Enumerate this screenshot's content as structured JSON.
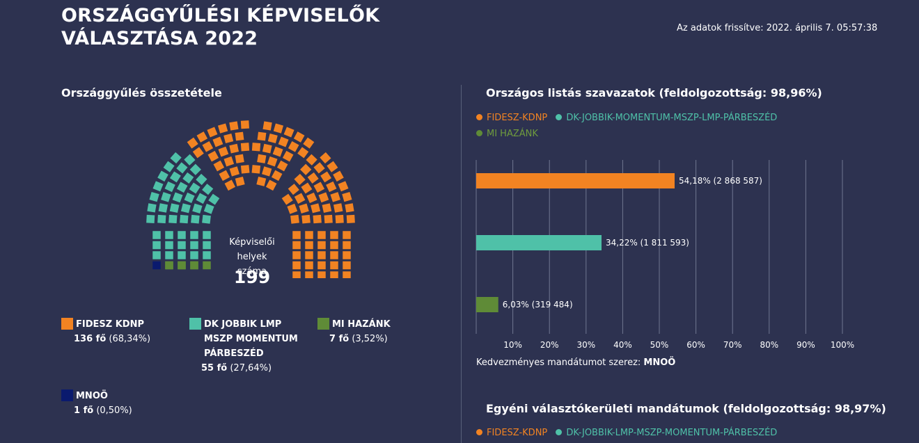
{
  "header": {
    "title_line1": "ORSZÁGGYŰLÉSI KÉPVISELŐK",
    "title_line2": "VÁLASZTÁSA 2022",
    "updated": "Az adatok frissítve: 2022. április 7. 05:57:38"
  },
  "parliament": {
    "heading": "Országgyűlés összetétele",
    "center_label_1": "Képviselői",
    "center_label_2": "helyek száma",
    "total_seats": "199",
    "colors": {
      "fidesz": "#f28322",
      "dk": "#4fc1a8",
      "mihazank": "#5f8b37",
      "mnoo": "#0a1a6e"
    },
    "parties": [
      {
        "name_lines": [
          "FIDESZ  KDNP"
        ],
        "seats_label": "136 fő",
        "pct_label": "(68,34%)",
        "seats": 136,
        "color": "#f28322"
      },
      {
        "name_lines": [
          "DK  JOBBIK  LMP",
          "MSZP  MOMENTUM",
          "PÁRBESZÉD"
        ],
        "seats_label": "55 fő",
        "pct_label": "(27,64%)",
        "seats": 55,
        "color": "#4fc1a8"
      },
      {
        "name_lines": [
          "MI HAZÁNK"
        ],
        "seats_label": "7 fő",
        "pct_label": "(3,52%)",
        "seats": 7,
        "color": "#5f8b37"
      },
      {
        "name_lines": [
          "MNOÖ"
        ],
        "seats_label": "1 fő",
        "pct_label": "(0,50%)",
        "seats": 1,
        "color": "#0a1a6e"
      }
    ]
  },
  "list_votes": {
    "heading": "Országos listás szavazatok (feldolgozottság: 98,96%)",
    "legend": [
      {
        "label": "FIDESZ-KDNP",
        "color": "#f28322"
      },
      {
        "label": "DK-JOBBIK-MOMENTUM-MSZP-LMP-PÁRBESZÉD",
        "color": "#4fc1a8"
      },
      {
        "label": "MI HAZÁNK",
        "color": "#5f8b37"
      }
    ],
    "favored_prefix": "Kedvezményes mandátumot szerez:",
    "favored_party": "MNOÖ"
  },
  "chart_data": {
    "type": "bar",
    "orientation": "horizontal",
    "categories": [
      "FIDESZ-KDNP",
      "DK-JOBBIK-MOMENTUM-MSZP-LMP-PÁRBESZÉD",
      "MI HAZÁNK"
    ],
    "values": [
      54.18,
      34.22,
      6.03
    ],
    "data_labels": [
      "54,18% (2 868 587)",
      "34,22% (1 811 593)",
      "6,03% (319 484)"
    ],
    "colors": [
      "#f28322",
      "#4fc1a8",
      "#5f8b37"
    ],
    "xlim": [
      0,
      100
    ],
    "xticks": [
      "10%",
      "20%",
      "30%",
      "40%",
      "50%",
      "60%",
      "70%",
      "80%",
      "90%",
      "100%"
    ],
    "grid": true
  },
  "districts": {
    "heading": "Egyéni választókerületi mandátumok (feldolgozottság: 98,97%)",
    "legend": [
      {
        "label": "FIDESZ-KDNP",
        "color": "#f28322"
      },
      {
        "label": "DK-JOBBIK-LMP-MSZP-MOMENTUM-PÁRBESZÉD",
        "color": "#4fc1a8"
      }
    ]
  }
}
